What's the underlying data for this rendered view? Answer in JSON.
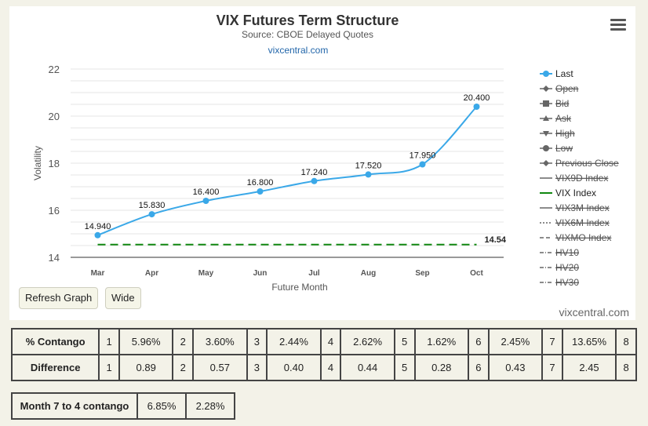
{
  "chart_data": {
    "type": "line",
    "title": "VIX Futures Term Structure",
    "subtitle": "Source: CBOE Delayed Quotes",
    "credit_link": "vixcentral.com",
    "xlabel": "Future Month",
    "ylabel": "Volatility",
    "categories": [
      "Mar",
      "Apr",
      "May",
      "Jun",
      "Jul",
      "Aug",
      "Sep",
      "Oct"
    ],
    "ylim": [
      14,
      22
    ],
    "yticks": [
      14,
      16,
      18,
      20,
      22
    ],
    "grid": true,
    "legend_position": "right",
    "series": [
      {
        "name": "Last",
        "values": [
          14.94,
          15.83,
          16.4,
          16.8,
          17.24,
          17.52,
          17.95,
          20.4
        ],
        "labels": [
          "14.940",
          "15.830",
          "16.400",
          "16.800",
          "17.240",
          "17.520",
          "17.950",
          "20.400"
        ],
        "color": "#3aa8e8"
      },
      {
        "name": "VIX Index",
        "value": 14.54,
        "label": "14.54",
        "color": "#118811",
        "dashed": true
      }
    ],
    "legend": [
      {
        "name": "Last",
        "symbol": "circle",
        "hidden": false,
        "color": "#3aa8e8"
      },
      {
        "name": "Open",
        "symbol": "diamond",
        "hidden": true,
        "color": "#555555"
      },
      {
        "name": "Bid",
        "symbol": "square",
        "hidden": true,
        "color": "#555555"
      },
      {
        "name": "Ask",
        "symbol": "triangle",
        "hidden": true,
        "color": "#555555"
      },
      {
        "name": "High",
        "symbol": "triangle-down",
        "hidden": true,
        "color": "#555555"
      },
      {
        "name": "Low",
        "symbol": "circle",
        "hidden": true,
        "color": "#555555"
      },
      {
        "name": "Previous Close",
        "symbol": "diamond",
        "hidden": true,
        "color": "#555555"
      },
      {
        "name": "VIX9D Index",
        "symbol": "line",
        "hidden": true,
        "color": "#555555"
      },
      {
        "name": "VIX Index",
        "symbol": "line",
        "hidden": false,
        "color": "#118811"
      },
      {
        "name": "VIX3M Index",
        "symbol": "line",
        "hidden": true,
        "color": "#555555"
      },
      {
        "name": "VIX6M Index",
        "symbol": "dotted",
        "hidden": true,
        "color": "#555555"
      },
      {
        "name": "VIXMO Index",
        "symbol": "dash",
        "hidden": true,
        "color": "#555555"
      },
      {
        "name": "HV10",
        "symbol": "dashdot",
        "hidden": true,
        "color": "#555555"
      },
      {
        "name": "HV20",
        "symbol": "dashdot",
        "hidden": true,
        "color": "#555555"
      },
      {
        "name": "HV30",
        "symbol": "dashdot",
        "hidden": true,
        "color": "#555555"
      }
    ]
  },
  "buttons": {
    "refresh": "Refresh Graph",
    "wide": "Wide"
  },
  "watermark": "vixcentral.com",
  "contango_table": {
    "rows": [
      {
        "label": "% Contango",
        "cells": [
          [
            "1",
            "5.96%"
          ],
          [
            "2",
            "3.60%"
          ],
          [
            "3",
            "2.44%"
          ],
          [
            "4",
            "2.62%"
          ],
          [
            "5",
            "1.62%"
          ],
          [
            "6",
            "2.45%"
          ],
          [
            "7",
            "13.65%"
          ],
          [
            "8",
            ""
          ]
        ]
      },
      {
        "label": "Difference",
        "cells": [
          [
            "1",
            "0.89"
          ],
          [
            "2",
            "0.57"
          ],
          [
            "3",
            "0.40"
          ],
          [
            "4",
            "0.44"
          ],
          [
            "5",
            "0.28"
          ],
          [
            "6",
            "0.43"
          ],
          [
            "7",
            "2.45"
          ],
          [
            "8",
            ""
          ]
        ]
      }
    ]
  },
  "month_table": {
    "label": "Month 7 to 4 contango",
    "value1": "6.85%",
    "value2": "2.28%"
  }
}
